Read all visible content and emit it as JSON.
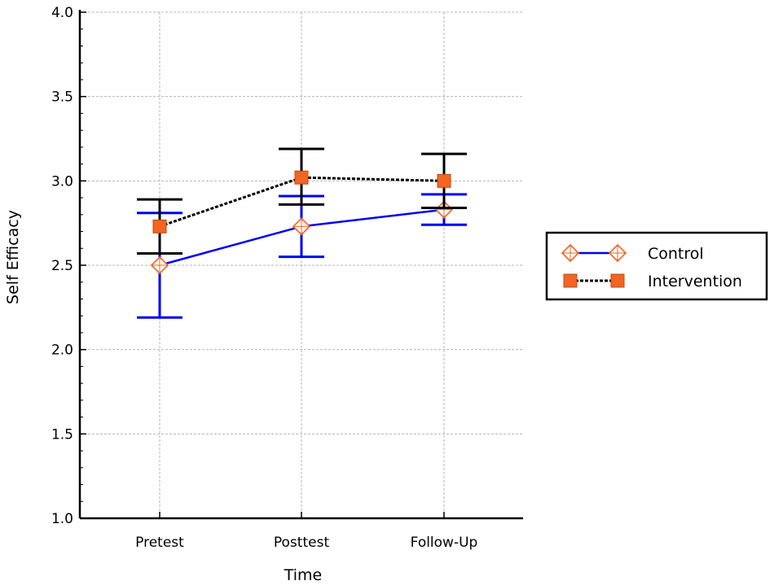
{
  "chart_data": {
    "type": "line",
    "title": "",
    "xlabel": "Time",
    "ylabel": "Self Efficacy",
    "categories": [
      "Pretest",
      "Posttest",
      "Follow-Up"
    ],
    "ylim": [
      1.0,
      4.0
    ],
    "yticks": [
      "1.0",
      "1.5",
      "2.0",
      "2.5",
      "3.0",
      "3.5",
      "4.0"
    ],
    "grid": true,
    "legend_position": "right",
    "series": [
      {
        "name": "Control",
        "values": [
          2.5,
          2.73,
          2.83
        ],
        "error_low": [
          2.19,
          2.55,
          2.74
        ],
        "error_high": [
          2.81,
          2.91,
          2.92
        ],
        "line_color": "#0000ee",
        "error_color": "#0000ee",
        "marker": "diamond-open",
        "marker_color": "#f26522",
        "line_style": "solid"
      },
      {
        "name": "Intervention",
        "values": [
          2.73,
          3.02,
          3.0
        ],
        "error_low": [
          2.57,
          2.86,
          2.84
        ],
        "error_high": [
          2.89,
          3.19,
          3.16
        ],
        "line_color": "#000000",
        "error_color": "#000000",
        "marker": "square-filled",
        "marker_color": "#f26522",
        "line_style": "dotted"
      }
    ]
  }
}
